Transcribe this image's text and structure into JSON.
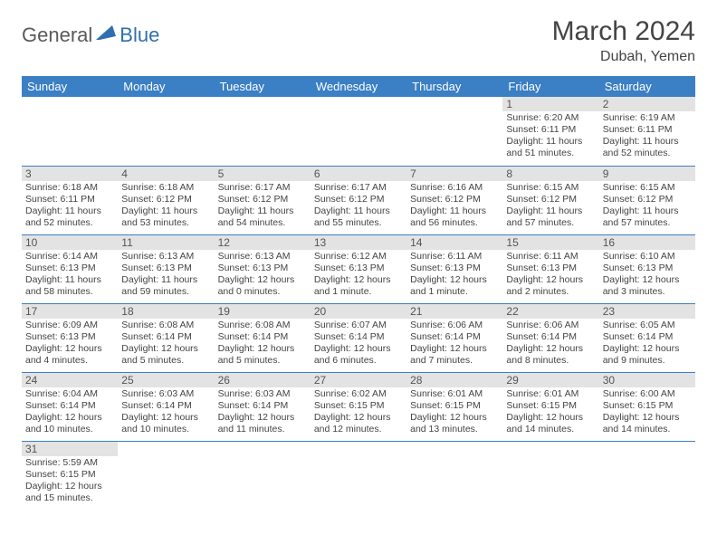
{
  "logo": {
    "general": "General",
    "blue": "Blue"
  },
  "title": "March 2024",
  "location": "Dubah, Yemen",
  "colors": {
    "header_bg": "#3b7fc4",
    "header_text": "#ffffff",
    "daynum_bg": "#e3e3e3",
    "row_border": "#3b7fc4",
    "logo_gray": "#5a5a5a",
    "logo_blue": "#2f6fb0"
  },
  "weekdays": [
    "Sunday",
    "Monday",
    "Tuesday",
    "Wednesday",
    "Thursday",
    "Friday",
    "Saturday"
  ],
  "weeks": [
    [
      null,
      null,
      null,
      null,
      null,
      {
        "n": "1",
        "sr": "Sunrise: 6:20 AM",
        "ss": "Sunset: 6:11 PM",
        "d1": "Daylight: 11 hours",
        "d2": "and 51 minutes."
      },
      {
        "n": "2",
        "sr": "Sunrise: 6:19 AM",
        "ss": "Sunset: 6:11 PM",
        "d1": "Daylight: 11 hours",
        "d2": "and 52 minutes."
      }
    ],
    [
      {
        "n": "3",
        "sr": "Sunrise: 6:18 AM",
        "ss": "Sunset: 6:11 PM",
        "d1": "Daylight: 11 hours",
        "d2": "and 52 minutes."
      },
      {
        "n": "4",
        "sr": "Sunrise: 6:18 AM",
        "ss": "Sunset: 6:12 PM",
        "d1": "Daylight: 11 hours",
        "d2": "and 53 minutes."
      },
      {
        "n": "5",
        "sr": "Sunrise: 6:17 AM",
        "ss": "Sunset: 6:12 PM",
        "d1": "Daylight: 11 hours",
        "d2": "and 54 minutes."
      },
      {
        "n": "6",
        "sr": "Sunrise: 6:17 AM",
        "ss": "Sunset: 6:12 PM",
        "d1": "Daylight: 11 hours",
        "d2": "and 55 minutes."
      },
      {
        "n": "7",
        "sr": "Sunrise: 6:16 AM",
        "ss": "Sunset: 6:12 PM",
        "d1": "Daylight: 11 hours",
        "d2": "and 56 minutes."
      },
      {
        "n": "8",
        "sr": "Sunrise: 6:15 AM",
        "ss": "Sunset: 6:12 PM",
        "d1": "Daylight: 11 hours",
        "d2": "and 57 minutes."
      },
      {
        "n": "9",
        "sr": "Sunrise: 6:15 AM",
        "ss": "Sunset: 6:12 PM",
        "d1": "Daylight: 11 hours",
        "d2": "and 57 minutes."
      }
    ],
    [
      {
        "n": "10",
        "sr": "Sunrise: 6:14 AM",
        "ss": "Sunset: 6:13 PM",
        "d1": "Daylight: 11 hours",
        "d2": "and 58 minutes."
      },
      {
        "n": "11",
        "sr": "Sunrise: 6:13 AM",
        "ss": "Sunset: 6:13 PM",
        "d1": "Daylight: 11 hours",
        "d2": "and 59 minutes."
      },
      {
        "n": "12",
        "sr": "Sunrise: 6:13 AM",
        "ss": "Sunset: 6:13 PM",
        "d1": "Daylight: 12 hours",
        "d2": "and 0 minutes."
      },
      {
        "n": "13",
        "sr": "Sunrise: 6:12 AM",
        "ss": "Sunset: 6:13 PM",
        "d1": "Daylight: 12 hours",
        "d2": "and 1 minute."
      },
      {
        "n": "14",
        "sr": "Sunrise: 6:11 AM",
        "ss": "Sunset: 6:13 PM",
        "d1": "Daylight: 12 hours",
        "d2": "and 1 minute."
      },
      {
        "n": "15",
        "sr": "Sunrise: 6:11 AM",
        "ss": "Sunset: 6:13 PM",
        "d1": "Daylight: 12 hours",
        "d2": "and 2 minutes."
      },
      {
        "n": "16",
        "sr": "Sunrise: 6:10 AM",
        "ss": "Sunset: 6:13 PM",
        "d1": "Daylight: 12 hours",
        "d2": "and 3 minutes."
      }
    ],
    [
      {
        "n": "17",
        "sr": "Sunrise: 6:09 AM",
        "ss": "Sunset: 6:13 PM",
        "d1": "Daylight: 12 hours",
        "d2": "and 4 minutes."
      },
      {
        "n": "18",
        "sr": "Sunrise: 6:08 AM",
        "ss": "Sunset: 6:14 PM",
        "d1": "Daylight: 12 hours",
        "d2": "and 5 minutes."
      },
      {
        "n": "19",
        "sr": "Sunrise: 6:08 AM",
        "ss": "Sunset: 6:14 PM",
        "d1": "Daylight: 12 hours",
        "d2": "and 5 minutes."
      },
      {
        "n": "20",
        "sr": "Sunrise: 6:07 AM",
        "ss": "Sunset: 6:14 PM",
        "d1": "Daylight: 12 hours",
        "d2": "and 6 minutes."
      },
      {
        "n": "21",
        "sr": "Sunrise: 6:06 AM",
        "ss": "Sunset: 6:14 PM",
        "d1": "Daylight: 12 hours",
        "d2": "and 7 minutes."
      },
      {
        "n": "22",
        "sr": "Sunrise: 6:06 AM",
        "ss": "Sunset: 6:14 PM",
        "d1": "Daylight: 12 hours",
        "d2": "and 8 minutes."
      },
      {
        "n": "23",
        "sr": "Sunrise: 6:05 AM",
        "ss": "Sunset: 6:14 PM",
        "d1": "Daylight: 12 hours",
        "d2": "and 9 minutes."
      }
    ],
    [
      {
        "n": "24",
        "sr": "Sunrise: 6:04 AM",
        "ss": "Sunset: 6:14 PM",
        "d1": "Daylight: 12 hours",
        "d2": "and 10 minutes."
      },
      {
        "n": "25",
        "sr": "Sunrise: 6:03 AM",
        "ss": "Sunset: 6:14 PM",
        "d1": "Daylight: 12 hours",
        "d2": "and 10 minutes."
      },
      {
        "n": "26",
        "sr": "Sunrise: 6:03 AM",
        "ss": "Sunset: 6:14 PM",
        "d1": "Daylight: 12 hours",
        "d2": "and 11 minutes."
      },
      {
        "n": "27",
        "sr": "Sunrise: 6:02 AM",
        "ss": "Sunset: 6:15 PM",
        "d1": "Daylight: 12 hours",
        "d2": "and 12 minutes."
      },
      {
        "n": "28",
        "sr": "Sunrise: 6:01 AM",
        "ss": "Sunset: 6:15 PM",
        "d1": "Daylight: 12 hours",
        "d2": "and 13 minutes."
      },
      {
        "n": "29",
        "sr": "Sunrise: 6:01 AM",
        "ss": "Sunset: 6:15 PM",
        "d1": "Daylight: 12 hours",
        "d2": "and 14 minutes."
      },
      {
        "n": "30",
        "sr": "Sunrise: 6:00 AM",
        "ss": "Sunset: 6:15 PM",
        "d1": "Daylight: 12 hours",
        "d2": "and 14 minutes."
      }
    ],
    [
      {
        "n": "31",
        "sr": "Sunrise: 5:59 AM",
        "ss": "Sunset: 6:15 PM",
        "d1": "Daylight: 12 hours",
        "d2": "and 15 minutes."
      },
      null,
      null,
      null,
      null,
      null,
      null
    ]
  ]
}
